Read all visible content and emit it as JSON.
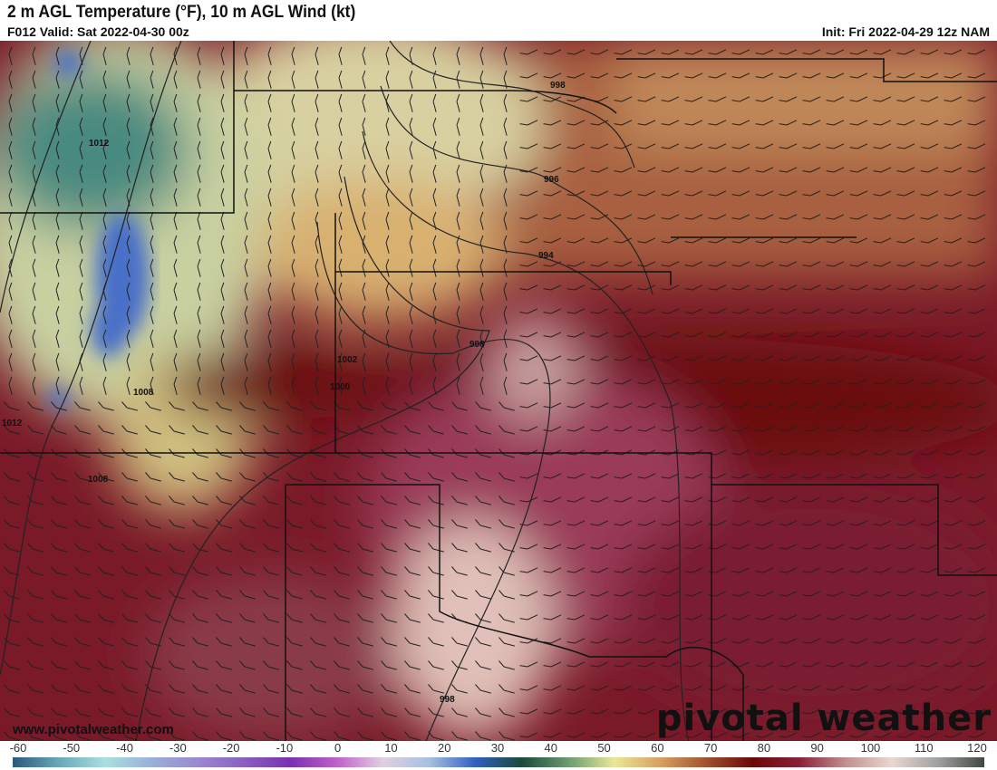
{
  "header": {
    "title": "2 m AGL Temperature (°F), 10 m AGL Wind (kt)",
    "valid": "F012 Valid: Sat 2022-04-30 00z",
    "init": "Init: Fri 2022-04-29 12z NAM"
  },
  "map": {
    "isobar_labels": [
      "998",
      "996",
      "994",
      "998",
      "1002",
      "1000",
      "1012",
      "1008",
      "1012",
      "1008",
      "998"
    ],
    "website": "www.pivotalweather.com",
    "brand": "pivotal weather"
  },
  "colorbar": {
    "units": "°F",
    "ticks": [
      "-60",
      "-50",
      "-40",
      "-30",
      "-20",
      "-10",
      "0",
      "10",
      "20",
      "30",
      "40",
      "50",
      "60",
      "70",
      "80",
      "90",
      "100",
      "110",
      "120"
    ],
    "colors": [
      "#2a5a7a",
      "#6aa8b8",
      "#a8e0e0",
      "#9ab0d8",
      "#9a88d0",
      "#8a60c0",
      "#7a30b0",
      "#c060c8",
      "#e0d0e0",
      "#a8c0e0",
      "#3060c0",
      "#1a4a3a",
      "#6a9a70",
      "#e8e898",
      "#d8a060",
      "#a05030",
      "#6a0808",
      "#8a2038",
      "#c09090",
      "#e8d8d0",
      "#a0a0a0",
      "#404840"
    ]
  }
}
